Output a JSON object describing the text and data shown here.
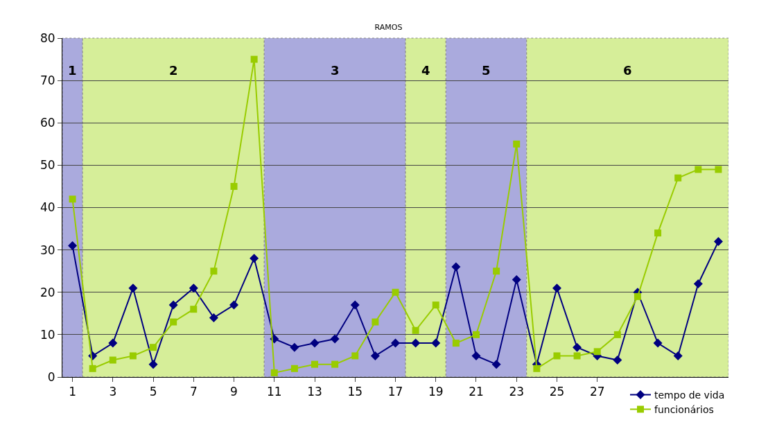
{
  "chart_data": {
    "type": "line",
    "title": "RAMOS",
    "x": [
      1,
      2,
      3,
      4,
      5,
      6,
      7,
      8,
      9,
      10,
      11,
      12,
      13,
      14,
      15,
      16,
      17,
      18,
      19,
      20,
      21,
      22,
      23,
      24,
      25,
      26,
      27,
      28,
      29,
      30,
      31,
      32,
      33
    ],
    "series": [
      {
        "name": "tempo de vida",
        "color": "#000080",
        "marker": "diamond",
        "values": [
          31,
          5,
          8,
          21,
          3,
          17,
          21,
          14,
          17,
          28,
          9,
          7,
          8,
          9,
          17,
          5,
          8,
          8,
          8,
          26,
          5,
          3,
          23,
          3,
          21,
          7,
          5,
          4,
          20,
          8,
          5,
          22,
          32
        ]
      },
      {
        "name": "funcionários",
        "color": "#99cc00",
        "marker": "square",
        "values": [
          42,
          2,
          4,
          5,
          7,
          13,
          16,
          25,
          45,
          75,
          1,
          2,
          3,
          3,
          5,
          13,
          20,
          11,
          17,
          8,
          10,
          25,
          55,
          2,
          5,
          5,
          6,
          10,
          19,
          34,
          47,
          49,
          49
        ]
      }
    ],
    "bands": [
      {
        "axis": "x",
        "from": 0.5,
        "to": 1.5,
        "label": "1",
        "color": "#aaaadd"
      },
      {
        "axis": "x",
        "from": 1.5,
        "to": 10.5,
        "label": "2",
        "color": "#d6ee99"
      },
      {
        "axis": "x",
        "from": 10.5,
        "to": 17.5,
        "label": "3",
        "color": "#aaaadd"
      },
      {
        "axis": "x",
        "from": 17.5,
        "to": 19.5,
        "label": "4",
        "color": "#d6ee99"
      },
      {
        "axis": "x",
        "from": 19.5,
        "to": 23.5,
        "label": "5",
        "color": "#aaaadd"
      },
      {
        "axis": "x",
        "from": 23.5,
        "to": 33.5,
        "label": "6",
        "color": "#d6ee99"
      }
    ],
    "xlim": [
      0.5,
      33.5
    ],
    "xticks": [
      1,
      3,
      5,
      7,
      9,
      11,
      13,
      15,
      17,
      19,
      21,
      23,
      25,
      27
    ],
    "ylim": [
      0,
      80
    ],
    "yticks": [
      0,
      10,
      20,
      30,
      40,
      50,
      60,
      70,
      80
    ],
    "grid": "y",
    "legend": "bottom right",
    "line_style": "solid"
  }
}
